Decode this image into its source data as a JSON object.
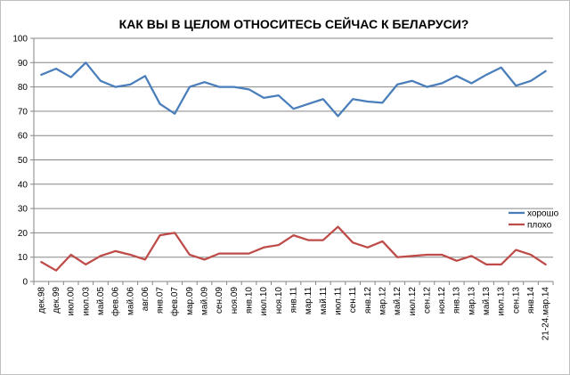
{
  "chart_data": {
    "type": "line",
    "title": "КАК ВЫ В ЦЕЛОМ ОТНОСИТЕСЬ СЕЙЧАС К БЕЛАРУСИ?",
    "ylim": [
      0,
      100
    ],
    "yticks": [
      0,
      10,
      20,
      30,
      40,
      50,
      60,
      70,
      80,
      90,
      100
    ],
    "grid": "horizontal",
    "legend": "right",
    "categories": [
      "дек.98",
      "дек.99",
      "июл.00",
      "июл.03",
      "май.05",
      "фев.06",
      "май.06",
      "авг.06",
      "янв.07",
      "фев.07",
      "мар.09",
      "май.09",
      "сен.09",
      "ноя.09",
      "янв.10",
      "июл.10",
      "ноя.10",
      "янв.11",
      "мар.11",
      "май.11",
      "июл.11",
      "сен.11",
      "янв.12",
      "мар.12",
      "май.12",
      "июл.12",
      "сен.12",
      "ноя.12",
      "янв.13",
      "мар.13",
      "май.13",
      "июл.13",
      "сен.13",
      "янв.14",
      "21-24.мар.14"
    ],
    "series": [
      {
        "name": "хорошо",
        "color": "#4A7EBB",
        "values": [
          85,
          87.5,
          84,
          90,
          82.5,
          80,
          81,
          84.5,
          73,
          69,
          80,
          82,
          80,
          80,
          79,
          75.5,
          76.5,
          71,
          73,
          75,
          68,
          75,
          74,
          73.5,
          81,
          82.5,
          80,
          81.5,
          84.5,
          81.5,
          85,
          88,
          80.5,
          82.5,
          86.5
        ]
      },
      {
        "name": "плохо",
        "color": "#BE4B48",
        "values": [
          8,
          4.5,
          11,
          7,
          10.5,
          12.5,
          11,
          9,
          19,
          20,
          11,
          9,
          11.5,
          11.5,
          11.5,
          14,
          15,
          19,
          17,
          17,
          22.5,
          16,
          14,
          16.5,
          10,
          10.5,
          11,
          11,
          8.5,
          10.5,
          7,
          7,
          13,
          11,
          7
        ]
      }
    ]
  }
}
